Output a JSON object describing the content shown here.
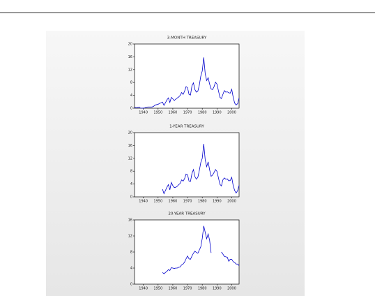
{
  "chart_data": [
    {
      "type": "line",
      "title": "3-MONTH TREASURY",
      "x": [
        1934,
        1935,
        1936,
        1937,
        1938,
        1939,
        1940,
        1941,
        1942,
        1943,
        1944,
        1945,
        1946,
        1947,
        1948,
        1949,
        1950,
        1951,
        1952,
        1953,
        1954,
        1955,
        1956,
        1957,
        1958,
        1959,
        1960,
        1961,
        1962,
        1963,
        1964,
        1965,
        1966,
        1967,
        1968,
        1969,
        1970,
        1971,
        1972,
        1973,
        1974,
        1975,
        1976,
        1977,
        1978,
        1979,
        1980,
        1981,
        1982,
        1983,
        1984,
        1985,
        1986,
        1987,
        1988,
        1989,
        1990,
        1991,
        1992,
        1993,
        1994,
        1995,
        1996,
        1997,
        1998,
        1999,
        2000,
        2001,
        2002,
        2003,
        2004,
        2005
      ],
      "series": [
        {
          "name": "3-MONTH TREASURY",
          "color": "#0000cc",
          "values": [
            0.3,
            0.15,
            0.2,
            0.4,
            0.05,
            0.02,
            0.01,
            0.1,
            0.3,
            0.38,
            0.38,
            0.38,
            0.38,
            0.6,
            1.0,
            1.1,
            1.2,
            1.5,
            1.7,
            1.9,
            0.9,
            1.7,
            2.6,
            3.2,
            1.8,
            3.4,
            2.9,
            2.4,
            2.8,
            3.2,
            3.5,
            4.0,
            4.9,
            4.3,
            5.3,
            6.7,
            6.4,
            4.3,
            4.1,
            7.0,
            7.9,
            5.8,
            5.0,
            5.3,
            7.2,
            10.0,
            11.6,
            15.8,
            10.7,
            8.6,
            9.5,
            7.5,
            6.0,
            5.8,
            6.7,
            8.1,
            7.5,
            5.4,
            3.4,
            3.0,
            4.3,
            5.5,
            5.0,
            5.1,
            4.8,
            4.7,
            5.9,
            3.4,
            1.6,
            1.0,
            1.4,
            3.2
          ]
        }
      ],
      "xlim": [
        1934,
        2005
      ],
      "xticks": [
        1940,
        1950,
        1960,
        1970,
        1980,
        1990,
        2000
      ],
      "ylim": [
        0,
        20
      ],
      "yticks": [
        0,
        4,
        8,
        12,
        16,
        20
      ]
    },
    {
      "type": "line",
      "title": "1-YEAR TREASURY",
      "x": [
        1953,
        1954,
        1955,
        1956,
        1957,
        1958,
        1959,
        1960,
        1961,
        1962,
        1963,
        1964,
        1965,
        1966,
        1967,
        1968,
        1969,
        1970,
        1971,
        1972,
        1973,
        1974,
        1975,
        1976,
        1977,
        1978,
        1979,
        1980,
        1981,
        1982,
        1983,
        1984,
        1985,
        1986,
        1987,
        1988,
        1989,
        1990,
        1991,
        1992,
        1993,
        1994,
        1995,
        1996,
        1997,
        1998,
        1999,
        2000,
        2001,
        2002,
        2003,
        2004,
        2005
      ],
      "series": [
        {
          "name": "1-YEAR TREASURY",
          "color": "#0000cc",
          "values": [
            2.4,
            1.0,
            2.0,
            3.0,
            3.8,
            2.2,
            4.5,
            3.5,
            2.9,
            3.0,
            3.3,
            3.8,
            4.2,
            5.3,
            4.9,
            5.7,
            7.1,
            6.9,
            4.9,
            4.8,
            7.3,
            8.5,
            6.3,
            5.5,
            6.1,
            8.2,
            10.7,
            12.0,
            16.5,
            11.5,
            9.4,
            10.9,
            8.4,
            6.4,
            6.8,
            7.6,
            8.5,
            7.9,
            5.9,
            3.9,
            3.4,
            5.3,
            5.9,
            5.5,
            5.6,
            5.0,
            5.1,
            6.1,
            3.5,
            2.0,
            1.2,
            1.9,
            3.6
          ]
        }
      ],
      "xlim": [
        1934,
        2005
      ],
      "xticks": [
        1940,
        1950,
        1960,
        1970,
        1980,
        1990,
        2000
      ],
      "ylim": [
        0,
        20
      ],
      "yticks": [
        0,
        4,
        8,
        12,
        16,
        20
      ]
    },
    {
      "type": "line",
      "title": "20-YEAR TREASURY",
      "x": [
        1953,
        1954,
        1955,
        1956,
        1957,
        1958,
        1959,
        1960,
        1961,
        1962,
        1963,
        1964,
        1965,
        1966,
        1967,
        1968,
        1969,
        1970,
        1971,
        1972,
        1973,
        1974,
        1975,
        1976,
        1977,
        1978,
        1979,
        1980,
        1981,
        1982,
        1983,
        1984,
        1985,
        1986,
        1987,
        1993,
        1994,
        1995,
        1996,
        1997,
        1998,
        1999,
        2000,
        2001,
        2002,
        2003,
        2004,
        2005
      ],
      "series": [
        {
          "name": "20-YEAR TREASURY",
          "color": "#0000cc",
          "values": [
            2.9,
            2.6,
            2.9,
            3.2,
            3.6,
            3.4,
            4.1,
            4.0,
            3.9,
            4.0,
            4.0,
            4.2,
            4.3,
            4.8,
            5.0,
            5.5,
            6.3,
            7.0,
            6.3,
            6.2,
            7.0,
            7.7,
            8.2,
            7.9,
            7.7,
            8.5,
            9.3,
            11.4,
            14.5,
            12.9,
            11.3,
            12.5,
            10.9,
            7.8,
            null,
            8.0,
            7.5,
            6.9,
            6.8,
            6.7,
            5.7,
            6.2,
            6.2,
            5.6,
            5.4,
            5.0,
            5.0,
            4.6
          ]
        }
      ],
      "xlim": [
        1934,
        2005
      ],
      "xticks": [
        1940,
        1950,
        1960,
        1970,
        1980,
        1990,
        2000
      ],
      "ylim": [
        0,
        16
      ],
      "yticks": [
        0,
        4,
        8,
        12,
        16
      ]
    }
  ]
}
